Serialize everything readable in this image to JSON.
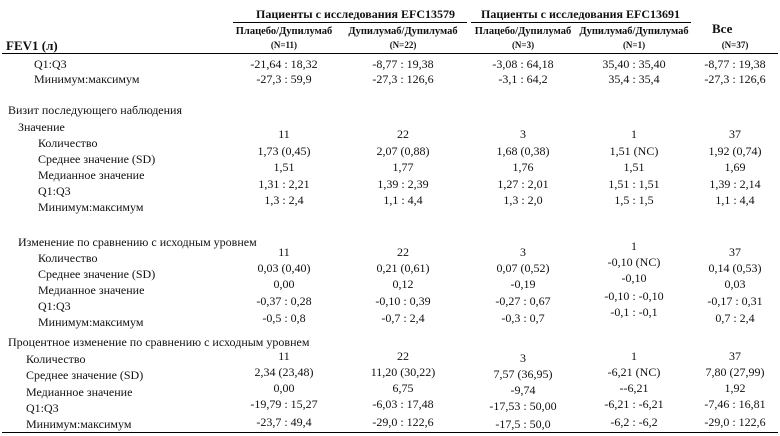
{
  "header": {
    "group1": "Пациенты с исследования EFC13579",
    "group2": "Пациенты с исследования EFC13691",
    "all": "Все",
    "first_col": "FEV1 (л)",
    "col1": "Плацебо/Дупилумаб",
    "col2": "Дупилумаб/Дупилумаб",
    "col3": "Плацебо/Дупилумаб",
    "col4": "Дупилумаб/Дупилумаб",
    "n1": "(N=11)",
    "n2": "(N=22)",
    "n3": "(N=3)",
    "n4": "(N=1)",
    "n5": "(N=37)"
  },
  "rows": [
    {
      "label": "Q1:Q3",
      "values": [
        "-21,64 : 18,32",
        "-8,77 : 19,38",
        "-3,08 : 64,18",
        "35,40 : 35,40",
        "-8,77 : 19,38"
      ]
    },
    {
      "label": "Минимум:максимум",
      "values": [
        "-27,3 : 59,9",
        "-27,3 : 126,6",
        "-3,1 : 64,2",
        "35,4 : 35,4",
        "-27,3 : 126,6"
      ]
    },
    {
      "label": "Визит последующего наблюдения",
      "values": []
    },
    {
      "label": "Значение",
      "values": []
    },
    {
      "label": "Количество",
      "values": [
        "11",
        "22",
        "3",
        "1",
        "37"
      ]
    },
    {
      "label": "Среднее значение (SD)",
      "values": [
        "1,73 (0,45)",
        "2,07 (0,88)",
        "1,68 (0,38)",
        "1,51 (NC)",
        "1,92 (0,74)"
      ]
    },
    {
      "label": "Медианное значение",
      "values": [
        "1,51",
        "1,77",
        "1,76",
        "1,51",
        "1,69"
      ]
    },
    {
      "label": "Q1:Q3",
      "values": [
        "1,31 : 2,21",
        "1,39 : 2,39",
        "1,27 : 2,01",
        "1,51 : 1,51",
        "1,39 : 2,14"
      ]
    },
    {
      "label": "Минимум:максимум",
      "values": [
        "1,3 : 2,4",
        "1,1 : 4,4",
        "1,3 : 2,0",
        "1,5 : 1,5",
        "1,1 : 4,4"
      ]
    },
    {
      "label": "Изменение по сравнению с исходным уровнем",
      "values": []
    },
    {
      "label": "Количество",
      "values": [
        "11",
        "22",
        "3",
        "1",
        "37"
      ]
    },
    {
      "label": "Среднее значение (SD)",
      "values": [
        "0,03 (0,40)",
        "0,21 (0,61)",
        "0,07 (0,52)",
        "-0,10 (NC)",
        "0,14 (0,53)"
      ]
    },
    {
      "label": "Медианное значение",
      "values": [
        "0,00",
        "0,12",
        "-0,19",
        "-0,10",
        "0,03"
      ]
    },
    {
      "label": "Q1:Q3",
      "values": [
        "-0,37 : 0,28",
        "-0,10 : 0,39",
        "-0,27 : 0,67",
        "-0,10 : -0,10",
        "-0,17 : 0,31"
      ]
    },
    {
      "label": "Минимум:максимум",
      "values": [
        "-0,5 : 0,8",
        "-0,7 : 2,4",
        "-0,3 : 0,7",
        "-0,1 : -0,1",
        "0,7 : 2,4"
      ]
    },
    {
      "label": "Процентное изменение по сравнению с исходным уровнем",
      "values": []
    },
    {
      "label": "Количество",
      "values": [
        "11",
        "22",
        "3",
        "1",
        "37"
      ]
    },
    {
      "label": "Среднее значение (SD)",
      "values": [
        "2,34 (23,48)",
        "11,20 (30,22)",
        "7,57 (36,95)",
        "-6,21 (NC)",
        "7,80 (27,99)"
      ]
    },
    {
      "label": "Медианное значение",
      "values": [
        "0,00",
        "6,75",
        "-9,74",
        "--6,21",
        "1,92"
      ]
    },
    {
      "label": "Q1:Q3",
      "values": [
        "-19,79 : 15,27",
        "-6,03 : 17,48",
        "-17,53 : 50,00",
        "-6,21 : -6,21",
        "-7,46 : 16,81"
      ]
    },
    {
      "label": "Минимум:максимум",
      "values": [
        "-23,7 : 49,4",
        "-29,0 : 122,6",
        "-17,5 : 50,0",
        "-6,2 : -6,2",
        "-29,0 : 122,6"
      ]
    }
  ]
}
